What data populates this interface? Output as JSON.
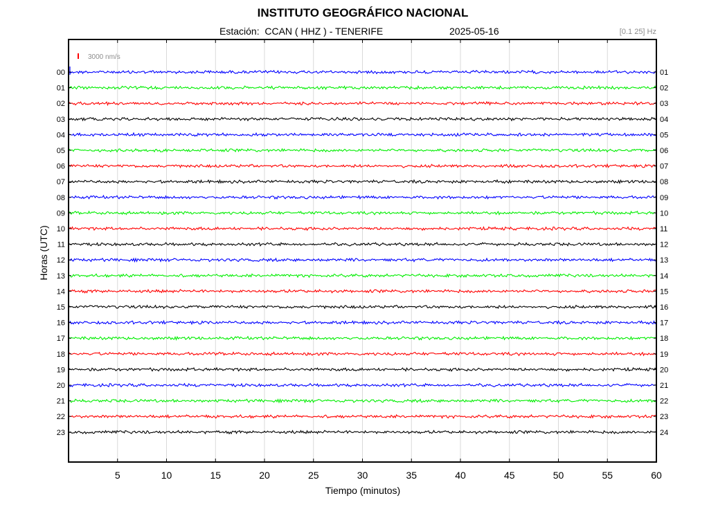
{
  "header": {
    "title": "INSTITUTO GEOGRÁFICO NACIONAL",
    "station": "Estación:  CCAN ( HHZ ) - TENERIFE",
    "date": "2025-05-16",
    "filter": "[0.1 25] Hz"
  },
  "chart_data": {
    "type": "line",
    "title": "INSTITUTO GEOGRÁFICO NACIONAL",
    "xlabel": "Tiempo (minutos)",
    "ylabel": "Horas (UTC)",
    "xlim": [
      0,
      60
    ],
    "x_ticks": [
      5,
      10,
      15,
      20,
      25,
      30,
      35,
      40,
      45,
      50,
      55,
      60
    ],
    "grid": true,
    "scale_label": "3000 nm/s",
    "scale_color": "#ff0000",
    "left_tick_labels": [
      "00",
      "01",
      "02",
      "03",
      "04",
      "05",
      "06",
      "07",
      "08",
      "09",
      "10",
      "11",
      "12",
      "13",
      "14",
      "15",
      "16",
      "17",
      "18",
      "19",
      "20",
      "21",
      "22",
      "23"
    ],
    "right_tick_labels": [
      "01",
      "02",
      "03",
      "04",
      "05",
      "06",
      "07",
      "08",
      "09",
      "10",
      "11",
      "12",
      "13",
      "14",
      "15",
      "16",
      "17",
      "18",
      "19",
      "20",
      "21",
      "22",
      "23",
      "24"
    ],
    "trace_colors": [
      "#0000ff",
      "#00ee00",
      "#ff0000",
      "#000000"
    ]
  }
}
